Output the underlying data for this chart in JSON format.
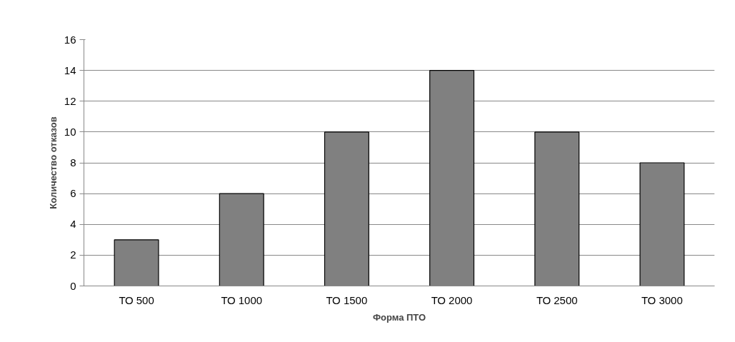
{
  "chart_data": {
    "type": "bar",
    "xlabel": "Форма ПТО",
    "ylabel": "Количество отказов",
    "categories": [
      "ТО 500",
      "ТО 1000",
      "ТО 1500",
      "ТО 2000",
      "ТО 2500",
      "ТО 3000"
    ],
    "values": [
      3,
      6,
      10,
      14,
      10,
      8
    ],
    "color": "#808080",
    "ylim": [
      0,
      16
    ],
    "yticks": [
      0,
      2,
      4,
      6,
      8,
      10,
      12,
      14,
      16
    ],
    "grid": "y"
  }
}
